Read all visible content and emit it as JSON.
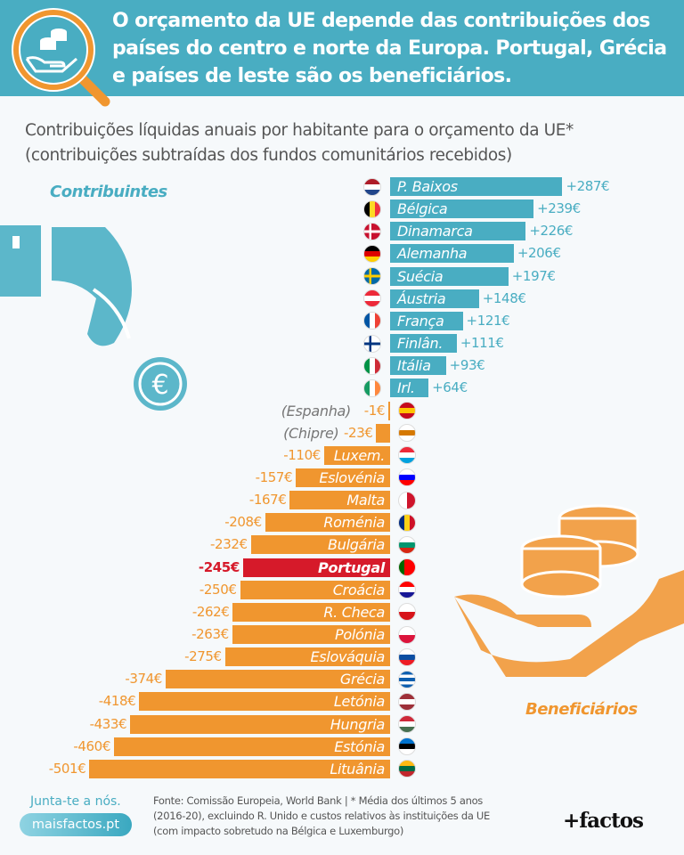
{
  "header": {
    "title": "O orçamento da UE depende das contribuições dos países do centro e norte da Europa. Portugal, Grécia e países de leste são os beneficiários."
  },
  "subtitle": {
    "line1": "Contribuições líquidas anuais por habitante para o orçamento da UE*",
    "line2": "(contribuições subtraídas dos fundos comunitários recebidos)"
  },
  "labels": {
    "contributors": "Contribuintes",
    "beneficiaries": "Beneficiários"
  },
  "colors": {
    "positive": "#49adc2",
    "negative": "#f0962f",
    "highlight": "#d61a2a",
    "muted": "#777777"
  },
  "chart_data": {
    "type": "bar",
    "orientation": "horizontal",
    "title": "Contribuições líquidas anuais por habitante para o orçamento da UE*",
    "unit": "€",
    "items": [
      {
        "label": "P. Baixos",
        "value": 287,
        "text": "+287€",
        "flag": [
          "v",
          "#ae1c28",
          "#ffffff",
          "#21468b"
        ]
      },
      {
        "label": "Bélgica",
        "value": 239,
        "text": "+239€",
        "flag": [
          "h",
          "#000000",
          "#fdda24",
          "#ef3340"
        ]
      },
      {
        "label": "Dinamarca",
        "value": 226,
        "text": "+226€",
        "flag": [
          "x",
          "#c8102e",
          "#ffffff"
        ]
      },
      {
        "label": "Alemanha",
        "value": 206,
        "text": "+206€",
        "flag": [
          "v",
          "#000000",
          "#dd0000",
          "#ffce00"
        ]
      },
      {
        "label": "Suécia",
        "value": 197,
        "text": "+197€",
        "flag": [
          "x",
          "#006aa7",
          "#fecc00"
        ]
      },
      {
        "label": "Áustria",
        "value": 148,
        "text": "+148€",
        "flag": [
          "v",
          "#ed2939",
          "#ffffff",
          "#ed2939"
        ]
      },
      {
        "label": "França",
        "value": 121,
        "text": "+121€",
        "flag": [
          "h",
          "#0055a4",
          "#ffffff",
          "#ef4135"
        ]
      },
      {
        "label": "Finlân.",
        "value": 111,
        "text": "+111€",
        "flag": [
          "x",
          "#ffffff",
          "#003580"
        ]
      },
      {
        "label": "Itália",
        "value": 93,
        "text": "+93€",
        "flag": [
          "h",
          "#009246",
          "#ffffff",
          "#ce2b37"
        ]
      },
      {
        "label": "Irl.",
        "value": 64,
        "text": "+64€",
        "flag": [
          "h",
          "#169b62",
          "#ffffff",
          "#ff883e"
        ]
      },
      {
        "label": "(Espanha)",
        "value": -1,
        "text": "-1€",
        "outside": true,
        "flag": [
          "v",
          "#c60b1e",
          "#ffc400",
          "#c60b1e"
        ]
      },
      {
        "label": "(Chipre)",
        "value": -23,
        "text": "-23€",
        "outside": true,
        "flag": [
          "v",
          "#ffffff",
          "#d57800",
          "#ffffff"
        ]
      },
      {
        "label": "Luxem.",
        "value": -110,
        "text": "-110€",
        "flag": [
          "v",
          "#ed2939",
          "#ffffff",
          "#00a1de"
        ]
      },
      {
        "label": "Eslovénia",
        "value": -157,
        "text": "-157€",
        "flag": [
          "v",
          "#ffffff",
          "#0000ff",
          "#ff0000"
        ]
      },
      {
        "label": "Malta",
        "value": -167,
        "text": "-167€",
        "flag": [
          "h",
          "#ffffff",
          "#cf142b"
        ]
      },
      {
        "label": "Roménia",
        "value": -208,
        "text": "-208€",
        "flag": [
          "h",
          "#002b7f",
          "#fcd116",
          "#ce1126"
        ]
      },
      {
        "label": "Bulgária",
        "value": -232,
        "text": "-232€",
        "flag": [
          "v",
          "#ffffff",
          "#00966e",
          "#d62612"
        ]
      },
      {
        "label": "Portugal",
        "value": -245,
        "text": "-245€",
        "highlight": true,
        "flag": [
          "h",
          "#006600",
          "#ff0000",
          "#ff0000"
        ]
      },
      {
        "label": "Croácia",
        "value": -250,
        "text": "-250€",
        "flag": [
          "v",
          "#ff0000",
          "#ffffff",
          "#171796"
        ]
      },
      {
        "label": "R. Checa",
        "value": -262,
        "text": "-262€",
        "flag": [
          "v",
          "#ffffff",
          "#d7141a"
        ]
      },
      {
        "label": "Polónia",
        "value": -263,
        "text": "-263€",
        "flag": [
          "v",
          "#ffffff",
          "#dc143c"
        ]
      },
      {
        "label": "Eslováquia",
        "value": -275,
        "text": "-275€",
        "flag": [
          "v",
          "#ffffff",
          "#0b4ea2",
          "#ee1c25"
        ]
      },
      {
        "label": "Grécia",
        "value": -374,
        "text": "-374€",
        "flag": [
          "v",
          "#0d5eaf",
          "#ffffff",
          "#0d5eaf",
          "#ffffff",
          "#0d5eaf"
        ]
      },
      {
        "label": "Letónia",
        "value": -418,
        "text": "-418€",
        "flag": [
          "v",
          "#9e3039",
          "#ffffff",
          "#9e3039"
        ]
      },
      {
        "label": "Hungria",
        "value": -433,
        "text": "-433€",
        "flag": [
          "v",
          "#ce2939",
          "#ffffff",
          "#477050"
        ]
      },
      {
        "label": "Estónia",
        "value": -460,
        "text": "-460€",
        "flag": [
          "v",
          "#0072ce",
          "#000000",
          "#ffffff"
        ]
      },
      {
        "label": "Lituânia",
        "value": -501,
        "text": "-501€",
        "flag": [
          "v",
          "#fdb913",
          "#006a44",
          "#c1272d"
        ]
      }
    ]
  },
  "footer": {
    "join": "Junta-te a nós.",
    "site": "maisfactos.pt",
    "source_line1": "Fonte: Comissão Europeia, World Bank | * Média dos últimos 5 anos",
    "source_line2": "(2016-20), excluindo R. Unido e custos relativos às instituições da UE",
    "source_line3": "(com impacto sobretudo na Bélgica e Luxemburgo)",
    "logo": "+factos"
  }
}
